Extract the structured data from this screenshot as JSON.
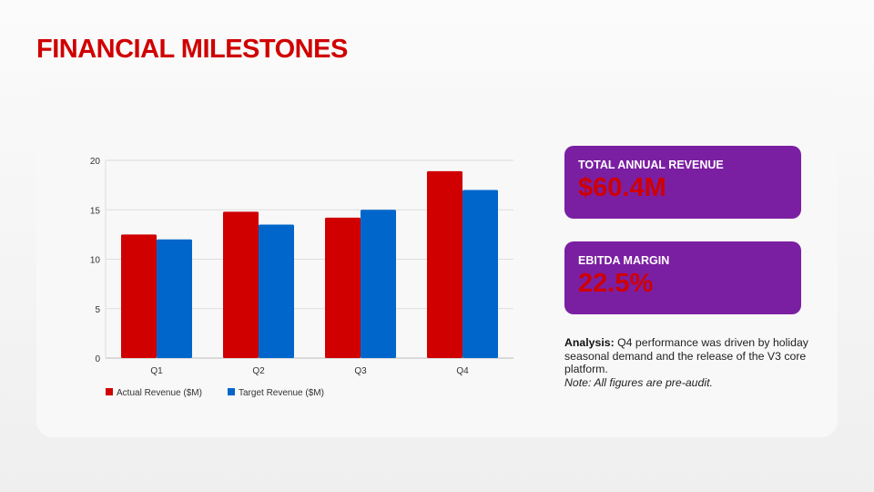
{
  "title": "FINANCIAL MILESTONES",
  "chart_data": {
    "type": "bar",
    "categories": [
      "Q1",
      "Q2",
      "Q3",
      "Q4"
    ],
    "series": [
      {
        "name": "Actual Revenue ($M)",
        "color": "#d00000",
        "values": [
          12.5,
          14.8,
          14.2,
          18.9
        ]
      },
      {
        "name": "Target Revenue ($M)",
        "color": "#0066cc",
        "values": [
          12,
          13.5,
          15,
          17
        ]
      }
    ],
    "ylim": [
      0,
      20
    ],
    "yticks": [
      0,
      5,
      10,
      15,
      20
    ],
    "grid": true,
    "legend": "bottom-left",
    "title": "",
    "xlabel": "",
    "ylabel": ""
  },
  "cards": [
    {
      "label": "TOTAL ANNUAL REVENUE",
      "value": "$60.4M"
    },
    {
      "label": "EBITDA MARGIN",
      "value": "22.5%"
    }
  ],
  "analysis": {
    "label": "Analysis:",
    "text": " Q4 performance was driven by holiday seasonal demand and the release of the V3 core platform.",
    "note": "Note: All figures are pre-audit."
  }
}
